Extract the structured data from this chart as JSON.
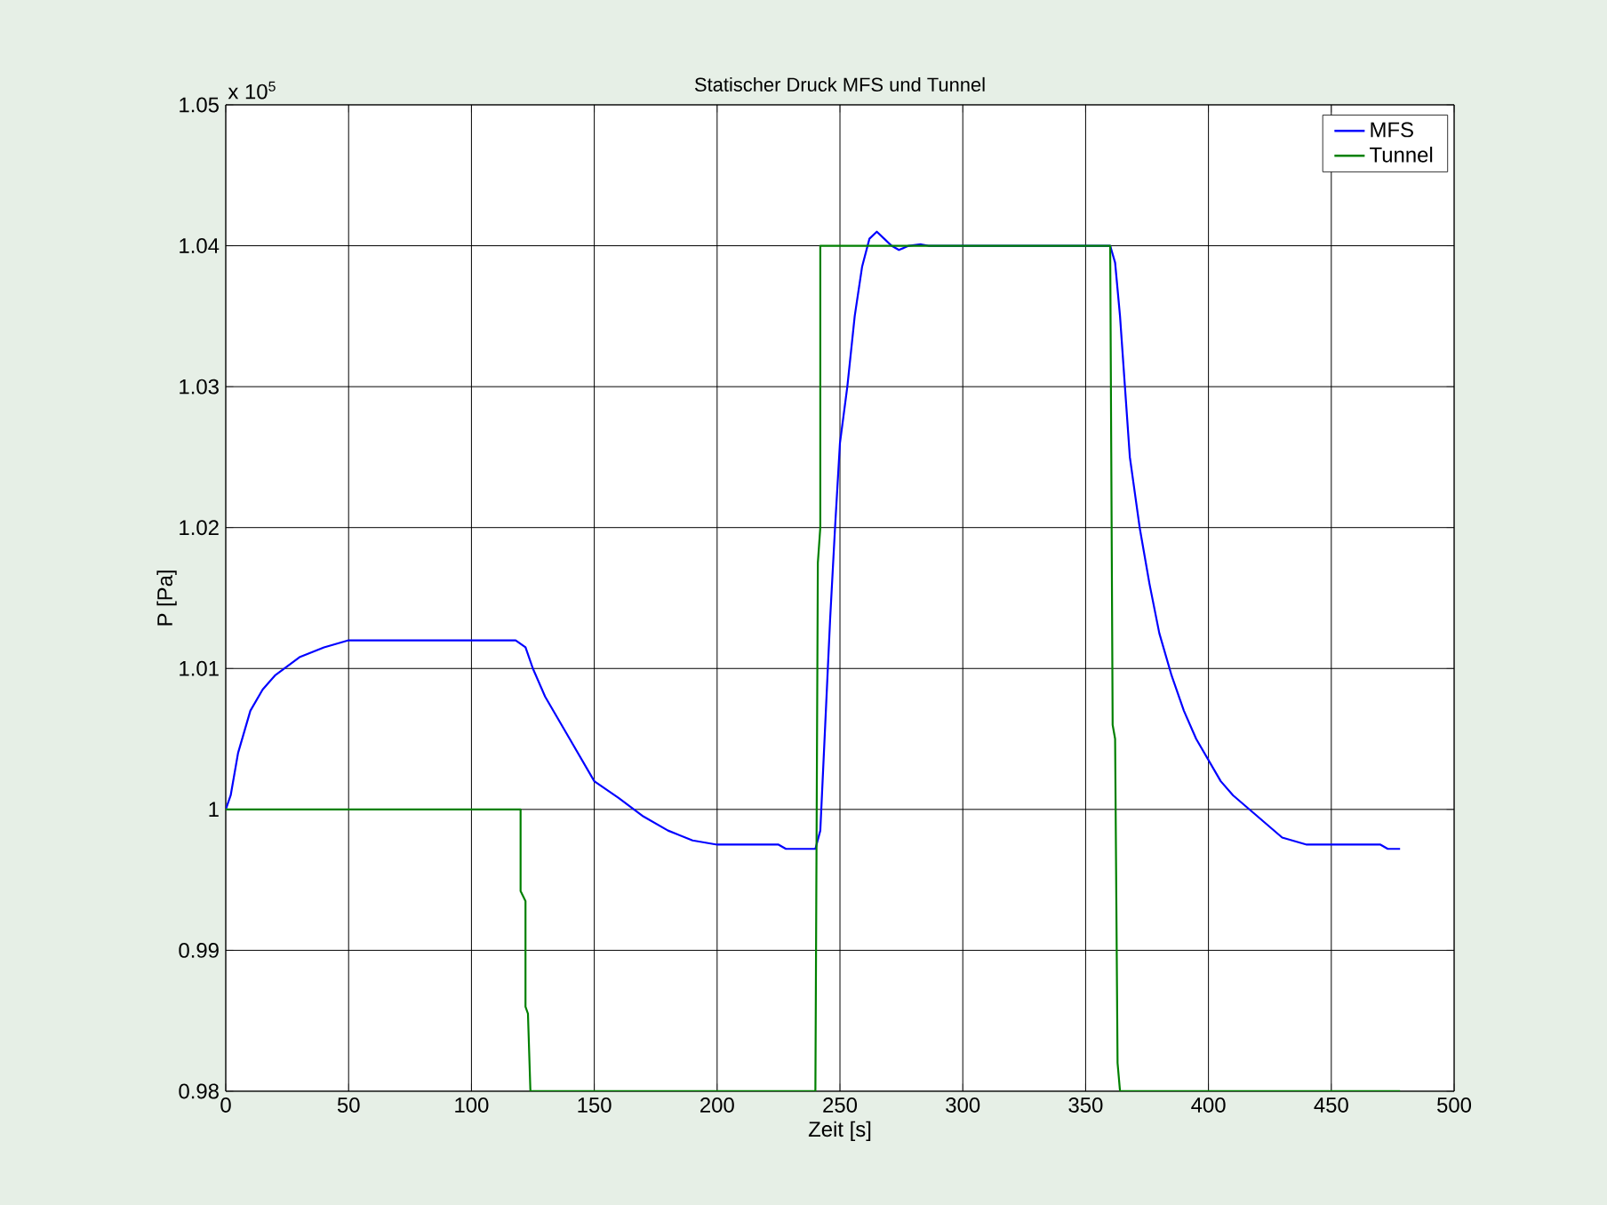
{
  "chart_data": {
    "type": "line",
    "title": "Statischer Druck MFS und Tunnel",
    "xlabel": "Zeit [s]",
    "ylabel": "P [Pa]",
    "annotations": [
      "x 10$^{5}$"
    ],
    "xlim": [
      0,
      500
    ],
    "xticks": [
      0,
      50,
      100,
      150,
      200,
      250,
      300,
      350,
      400,
      450,
      500
    ],
    "ylim": [
      0.98,
      1.05
    ],
    "yticks": [
      0.98,
      0.99,
      1,
      1.01,
      1.02,
      1.03,
      1.04,
      1.05
    ],
    "grid": true,
    "legend": "top right",
    "line_style": "solid",
    "marker": "none",
    "series": [
      {
        "name": "MFS",
        "color": "#0000ff",
        "x": [
          0,
          2,
          5,
          10,
          15,
          20,
          30,
          40,
          50,
          118,
          122,
          125,
          130,
          135,
          140,
          145,
          150,
          160,
          170,
          180,
          190,
          200,
          225,
          228,
          240,
          242,
          244,
          246,
          248,
          250,
          253,
          256,
          259,
          262,
          265,
          268,
          271,
          274,
          278,
          283,
          286,
          360,
          362,
          364,
          366,
          368,
          372,
          376,
          380,
          385,
          390,
          395,
          400,
          405,
          410,
          420,
          430,
          440,
          470,
          473,
          478
        ],
        "values": [
          1.0,
          1.001,
          1.004,
          1.007,
          1.0085,
          1.0095,
          1.0108,
          1.0115,
          1.012,
          1.012,
          1.0115,
          1.01,
          1.008,
          1.0065,
          1.005,
          1.0035,
          1.002,
          1.0008,
          0.9995,
          0.9985,
          0.9978,
          0.9975,
          0.9975,
          0.9972,
          0.9972,
          0.9985,
          1.006,
          1.0135,
          1.02,
          1.026,
          1.03,
          1.035,
          1.0385,
          1.0405,
          1.041,
          1.0405,
          1.04,
          1.0397,
          1.04,
          1.0401,
          1.04,
          1.04,
          1.0388,
          1.035,
          1.03,
          1.025,
          1.02,
          1.016,
          1.0125,
          1.0095,
          1.007,
          1.005,
          1.0035,
          1.002,
          1.001,
          0.9995,
          0.998,
          0.9975,
          0.9975,
          0.9972,
          0.9972
        ]
      },
      {
        "name": "Tunnel",
        "color": "#008000",
        "x": [
          0,
          120,
          120,
          122,
          122,
          123,
          124,
          240,
          241,
          242,
          242,
          360,
          361,
          362,
          363,
          364,
          478
        ],
        "values": [
          1.0,
          1.0,
          0.9942,
          0.9935,
          0.986,
          0.9855,
          0.98,
          0.98,
          1.0175,
          1.02,
          1.04,
          1.04,
          1.006,
          1.005,
          0.982,
          0.98,
          0.98
        ]
      }
    ]
  }
}
